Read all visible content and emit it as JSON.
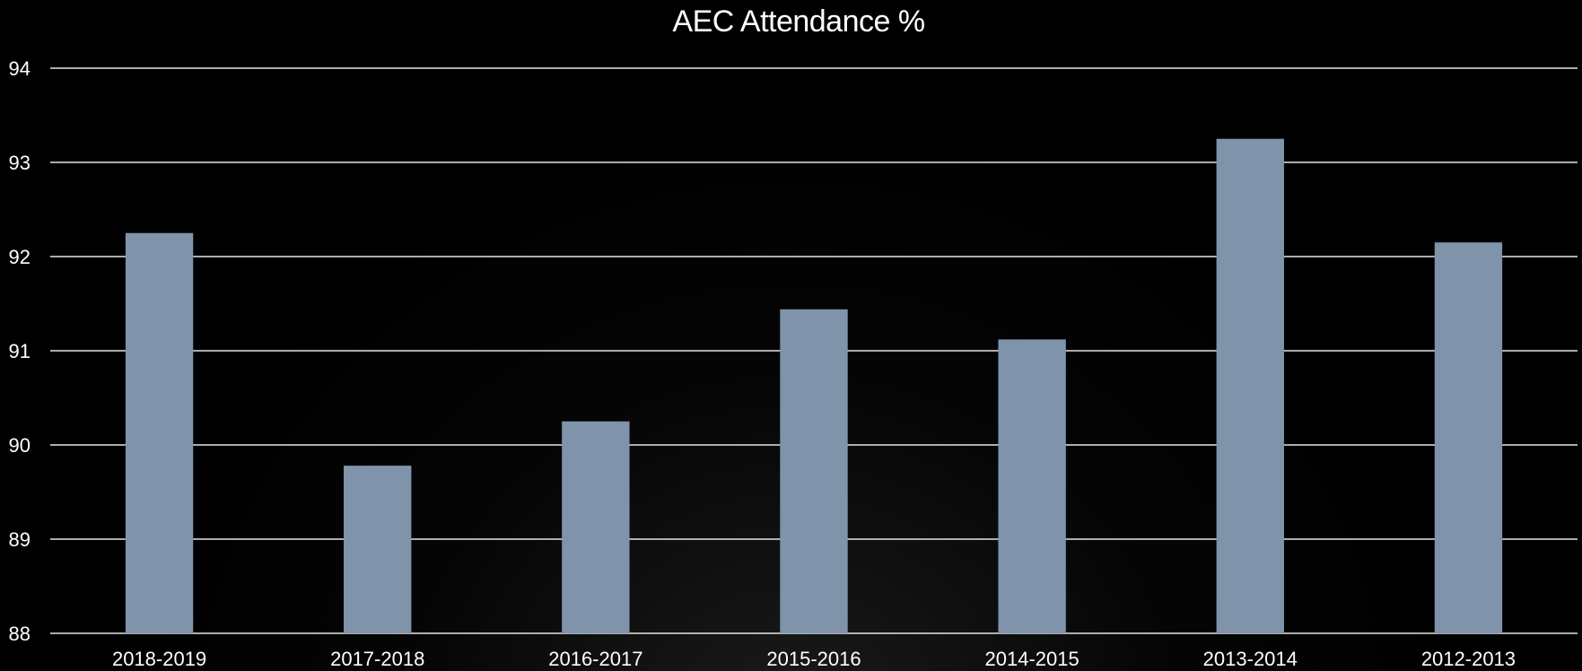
{
  "chart_data": {
    "type": "bar",
    "title": "AEC Attendance %",
    "xlabel": "",
    "ylabel": "",
    "categories": [
      "2018-2019",
      "2017-2018",
      "2016-2017",
      "2015-2016",
      "2014-2015",
      "2013-2014",
      "2012-2013"
    ],
    "values": [
      92.25,
      89.78,
      90.25,
      91.44,
      91.12,
      93.25,
      92.15
    ],
    "ylim": [
      88,
      94
    ],
    "yticks": [
      88,
      89,
      90,
      91,
      92,
      93,
      94
    ],
    "grid": true,
    "legend": "none",
    "colors": {
      "bar": "#7f94ab",
      "background": "#000000",
      "grid": "#e6e6e6",
      "text": "#ffffff"
    }
  }
}
